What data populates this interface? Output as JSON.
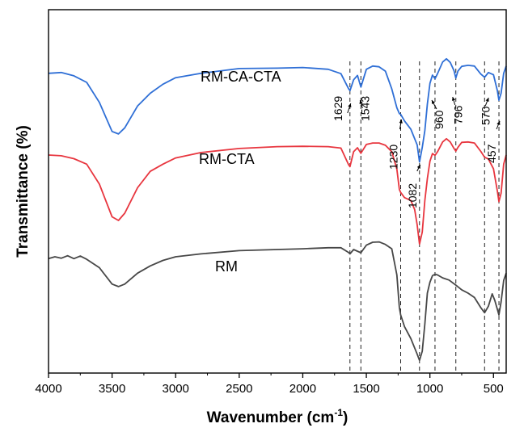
{
  "chart_data": {
    "type": "line",
    "title": "",
    "xlabel": "Wavenumber (cm",
    "xlabel_sup": "-1",
    "xlabel_tail": ")",
    "ylabel": "Transmittance (%)",
    "xlim": [
      4000,
      400
    ],
    "x_reversed": true,
    "ylim": [
      0,
      100
    ],
    "y_ticks_shown": false,
    "grid": false,
    "x_ticks": [
      4000,
      3500,
      3000,
      2500,
      2000,
      1500,
      1000,
      500
    ],
    "x_tick_labels": [
      "4000",
      "3500",
      "3000",
      "2500",
      "2000",
      "1500",
      "1000",
      "500"
    ],
    "reference_lines": [
      1629,
      1543,
      1230,
      1082,
      960,
      796,
      570,
      457
    ],
    "peak_labels": [
      {
        "text": "1629",
        "x": 1629
      },
      {
        "text": "1543",
        "x": 1543
      },
      {
        "text": "1230",
        "x": 1230
      },
      {
        "text": "1082",
        "x": 1082
      },
      {
        "text": "960",
        "x": 960
      },
      {
        "text": "796",
        "x": 796
      },
      {
        "text": "570",
        "x": 570
      },
      {
        "text": "457",
        "x": 457
      }
    ],
    "series": [
      {
        "name": "RM-CA-CTA",
        "color": "#2f6fd6",
        "points": [
          [
            4000,
            82.5
          ],
          [
            3900,
            82.7
          ],
          [
            3800,
            81.8
          ],
          [
            3700,
            80.0
          ],
          [
            3600,
            74.5
          ],
          [
            3500,
            66.5
          ],
          [
            3450,
            65.8
          ],
          [
            3400,
            67.5
          ],
          [
            3300,
            73.5
          ],
          [
            3200,
            77.0
          ],
          [
            3100,
            79.5
          ],
          [
            3000,
            81.3
          ],
          [
            2800,
            82.5
          ],
          [
            2500,
            83.8
          ],
          [
            2200,
            83.9
          ],
          [
            2000,
            84.1
          ],
          [
            1800,
            83.6
          ],
          [
            1700,
            82.4
          ],
          [
            1640,
            78.3
          ],
          [
            1629,
            77.7
          ],
          [
            1600,
            80.7
          ],
          [
            1570,
            81.9
          ],
          [
            1543,
            78.7
          ],
          [
            1500,
            83.6
          ],
          [
            1450,
            84.5
          ],
          [
            1400,
            84.3
          ],
          [
            1350,
            83.1
          ],
          [
            1300,
            78.2
          ],
          [
            1260,
            73.0
          ],
          [
            1240,
            71.4
          ],
          [
            1230,
            71.2
          ],
          [
            1200,
            69.4
          ],
          [
            1150,
            67.1
          ],
          [
            1100,
            62.8
          ],
          [
            1082,
            58.1
          ],
          [
            1060,
            62.1
          ],
          [
            1040,
            66.7
          ],
          [
            1020,
            74.0
          ],
          [
            1000,
            79.7
          ],
          [
            980,
            82.0
          ],
          [
            960,
            81.0
          ],
          [
            940,
            82.4
          ],
          [
            900,
            85.6
          ],
          [
            870,
            86.5
          ],
          [
            840,
            85.5
          ],
          [
            810,
            83.2
          ],
          [
            796,
            81.2
          ],
          [
            780,
            83.1
          ],
          [
            750,
            84.4
          ],
          [
            700,
            84.7
          ],
          [
            650,
            84.5
          ],
          [
            600,
            82.3
          ],
          [
            570,
            81.4
          ],
          [
            540,
            82.7
          ],
          [
            500,
            82.1
          ],
          [
            470,
            77.8
          ],
          [
            457,
            75.1
          ],
          [
            440,
            77.0
          ],
          [
            420,
            82.5
          ],
          [
            400,
            84.5
          ]
        ]
      },
      {
        "name": "RM-CTA",
        "color": "#e8363f",
        "points": [
          [
            4000,
            60.0
          ],
          [
            3900,
            59.8
          ],
          [
            3800,
            59.0
          ],
          [
            3700,
            57.5
          ],
          [
            3600,
            52.0
          ],
          [
            3500,
            43.0
          ],
          [
            3450,
            42.0
          ],
          [
            3400,
            44.0
          ],
          [
            3300,
            51.0
          ],
          [
            3200,
            55.5
          ],
          [
            3100,
            57.5
          ],
          [
            3000,
            59.2
          ],
          [
            2800,
            60.7
          ],
          [
            2500,
            61.8
          ],
          [
            2200,
            62.3
          ],
          [
            2000,
            62.4
          ],
          [
            1800,
            62.3
          ],
          [
            1700,
            61.9
          ],
          [
            1640,
            57.4
          ],
          [
            1629,
            56.8
          ],
          [
            1600,
            60.9
          ],
          [
            1570,
            62.0
          ],
          [
            1543,
            60.5
          ],
          [
            1500,
            62.9
          ],
          [
            1450,
            63.3
          ],
          [
            1400,
            63.3
          ],
          [
            1350,
            62.7
          ],
          [
            1300,
            60.9
          ],
          [
            1260,
            56.1
          ],
          [
            1240,
            50.5
          ],
          [
            1230,
            49.7
          ],
          [
            1200,
            48.3
          ],
          [
            1150,
            47.5
          ],
          [
            1120,
            45.0
          ],
          [
            1100,
            40.8
          ],
          [
            1082,
            35.5
          ],
          [
            1060,
            38.8
          ],
          [
            1040,
            47.5
          ],
          [
            1020,
            53.5
          ],
          [
            1000,
            58.3
          ],
          [
            980,
            60.4
          ],
          [
            960,
            59.9
          ],
          [
            940,
            60.9
          ],
          [
            900,
            63.6
          ],
          [
            870,
            64.5
          ],
          [
            840,
            63.6
          ],
          [
            810,
            61.8
          ],
          [
            796,
            61.1
          ],
          [
            780,
            62.1
          ],
          [
            750,
            63.5
          ],
          [
            700,
            63.6
          ],
          [
            650,
            63.3
          ],
          [
            600,
            61.0
          ],
          [
            570,
            59.4
          ],
          [
            540,
            58.9
          ],
          [
            500,
            56.2
          ],
          [
            470,
            50.2
          ],
          [
            457,
            47.2
          ],
          [
            440,
            49.5
          ],
          [
            420,
            57.5
          ],
          [
            400,
            60.0
          ]
        ]
      },
      {
        "name": "RM",
        "color": "#474747",
        "points": [
          [
            4000,
            31.5
          ],
          [
            3950,
            32.0
          ],
          [
            3900,
            31.6
          ],
          [
            3850,
            32.3
          ],
          [
            3800,
            31.5
          ],
          [
            3750,
            32.2
          ],
          [
            3700,
            31.3
          ],
          [
            3600,
            29.0
          ],
          [
            3500,
            24.5
          ],
          [
            3450,
            23.8
          ],
          [
            3400,
            24.5
          ],
          [
            3300,
            27.5
          ],
          [
            3200,
            29.5
          ],
          [
            3100,
            31.0
          ],
          [
            3000,
            32.0
          ],
          [
            2800,
            32.8
          ],
          [
            2500,
            33.7
          ],
          [
            2200,
            34.0
          ],
          [
            2000,
            34.2
          ],
          [
            1800,
            34.5
          ],
          [
            1700,
            34.5
          ],
          [
            1640,
            33.2
          ],
          [
            1629,
            32.8
          ],
          [
            1600,
            34.0
          ],
          [
            1543,
            33.1
          ],
          [
            1500,
            35.2
          ],
          [
            1450,
            36.0
          ],
          [
            1400,
            36.1
          ],
          [
            1350,
            35.4
          ],
          [
            1300,
            34.2
          ],
          [
            1260,
            27.0
          ],
          [
            1240,
            18.0
          ],
          [
            1230,
            16.0
          ],
          [
            1200,
            12.8
          ],
          [
            1150,
            9.5
          ],
          [
            1100,
            5.2
          ],
          [
            1082,
            3.5
          ],
          [
            1060,
            6.0
          ],
          [
            1040,
            13.5
          ],
          [
            1020,
            22.0
          ],
          [
            1000,
            25.0
          ],
          [
            980,
            26.8
          ],
          [
            960,
            27.2
          ],
          [
            940,
            27.0
          ],
          [
            900,
            26.2
          ],
          [
            850,
            25.6
          ],
          [
            800,
            24.3
          ],
          [
            750,
            22.9
          ],
          [
            700,
            22.0
          ],
          [
            650,
            20.8
          ],
          [
            600,
            18.0
          ],
          [
            570,
            16.6
          ],
          [
            540,
            18.4
          ],
          [
            510,
            21.8
          ],
          [
            490,
            20.0
          ],
          [
            470,
            17.6
          ],
          [
            457,
            16.0
          ],
          [
            440,
            19.6
          ],
          [
            420,
            25.5
          ],
          [
            400,
            27.5
          ]
        ]
      }
    ],
    "series_labels": [
      {
        "text": "RM-CA-CTA",
        "series": 0
      },
      {
        "text": "RM-CTA",
        "series": 1
      },
      {
        "text": "RM",
        "series": 2
      }
    ]
  }
}
